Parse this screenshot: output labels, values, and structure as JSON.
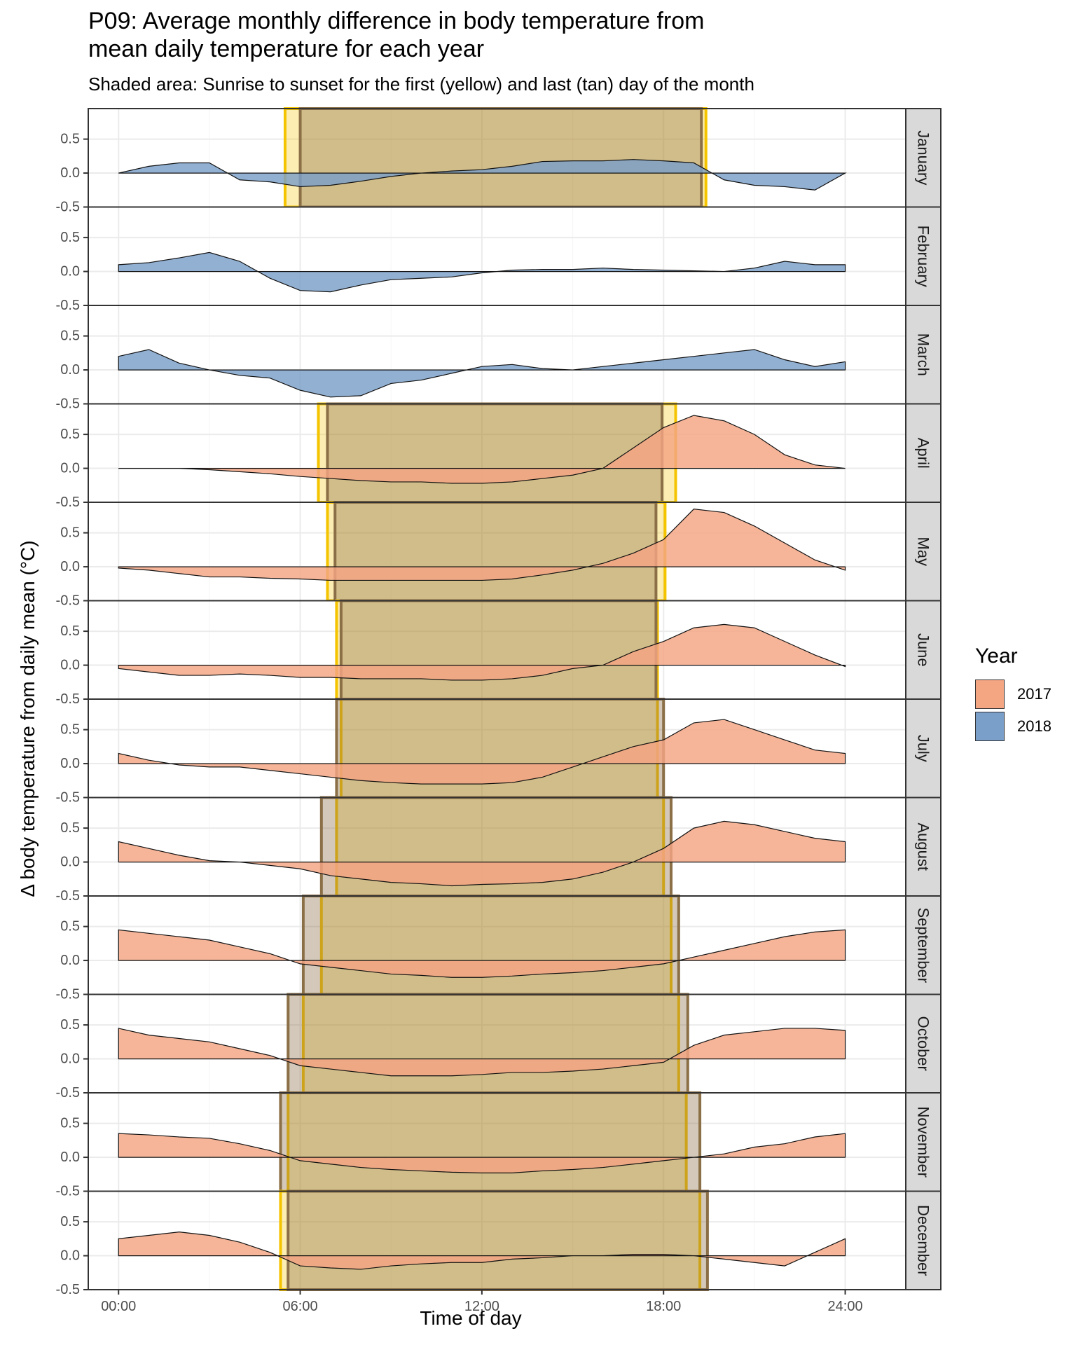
{
  "chart_data": {
    "type": "area",
    "title": "P09: Average monthly difference in body temperature from\nmean daily temperature for each year",
    "subtitle": "Shaded area: Sunrise to sunset for the first (yellow) and last (tan) day of the month",
    "xlabel": "Time of day",
    "ylabel": "Δ body temperature from daily mean (°C)",
    "x_unit": "hour",
    "xlim": [
      -1,
      26
    ],
    "ylim": [
      -0.5,
      0.95
    ],
    "x_ticks": [
      0,
      6,
      12,
      18,
      24
    ],
    "x_tick_labels": [
      "00:00",
      "06:00",
      "12:00",
      "18:00",
      "24:00"
    ],
    "y_ticks": [
      -0.5,
      0.0,
      0.5
    ],
    "y_tick_labels": [
      "-0.5",
      "0.0",
      "0.5"
    ],
    "grid": true,
    "legend": {
      "title": "Year",
      "position": "right",
      "entries": [
        {
          "label": "2017",
          "color": "#F4A582"
        },
        {
          "label": "2018",
          "color": "#7A9FC8"
        }
      ]
    },
    "colors": {
      "2017": "#F4A582",
      "2018": "#7A9FC8",
      "daylight_first": "#F5C400",
      "daylight_last": "#8B6F47",
      "strip_bg": "#D9D9D9"
    },
    "panels": [
      {
        "month": "January",
        "year": "2018",
        "first_day": [
          5.5,
          19.4
        ],
        "last_day": [
          6.0,
          19.25
        ],
        "x": [
          0,
          1,
          2,
          3,
          4,
          5,
          6,
          7,
          8,
          9,
          10,
          11,
          12,
          13,
          14,
          15,
          16,
          17,
          18,
          19,
          20,
          21,
          22,
          23,
          24
        ],
        "y": [
          0.0,
          0.1,
          0.15,
          0.15,
          -0.1,
          -0.13,
          -0.2,
          -0.18,
          -0.12,
          -0.05,
          0.0,
          0.03,
          0.05,
          0.1,
          0.17,
          0.18,
          0.18,
          0.2,
          0.18,
          0.15,
          -0.1,
          -0.18,
          -0.2,
          -0.25,
          0.0
        ]
      },
      {
        "month": "February",
        "year": "2018",
        "first_day": null,
        "last_day": null,
        "x": [
          0,
          1,
          2,
          3,
          4,
          5,
          6,
          7,
          8,
          9,
          10,
          11,
          12,
          13,
          14,
          15,
          16,
          17,
          18,
          19,
          20,
          21,
          22,
          23,
          24
        ],
        "y": [
          0.1,
          0.13,
          0.2,
          0.28,
          0.15,
          -0.1,
          -0.28,
          -0.3,
          -0.2,
          -0.12,
          -0.1,
          -0.08,
          -0.02,
          0.02,
          0.03,
          0.03,
          0.05,
          0.03,
          0.02,
          0.01,
          0.0,
          0.05,
          0.15,
          0.1,
          0.1
        ]
      },
      {
        "month": "March",
        "year": "2018",
        "first_day": null,
        "last_day": null,
        "x": [
          0,
          1,
          2,
          3,
          4,
          5,
          6,
          7,
          8,
          9,
          10,
          11,
          12,
          13,
          14,
          15,
          16,
          17,
          18,
          19,
          20,
          21,
          22,
          23,
          24
        ],
        "y": [
          0.2,
          0.3,
          0.1,
          0.0,
          -0.08,
          -0.12,
          -0.3,
          -0.4,
          -0.38,
          -0.2,
          -0.15,
          -0.05,
          0.05,
          0.08,
          0.02,
          0.0,
          0.05,
          0.1,
          0.15,
          0.2,
          0.25,
          0.3,
          0.15,
          0.05,
          0.12
        ]
      },
      {
        "month": "April",
        "year": "2017",
        "first_day": [
          6.6,
          18.4
        ],
        "last_day": [
          6.9,
          17.95
        ],
        "x": [
          0,
          1,
          2,
          3,
          4,
          5,
          6,
          7,
          8,
          9,
          10,
          11,
          12,
          13,
          14,
          15,
          16,
          17,
          18,
          19,
          20,
          21,
          22,
          23,
          24
        ],
        "y": [
          0.0,
          0.0,
          0.0,
          -0.02,
          -0.05,
          -0.08,
          -0.12,
          -0.15,
          -0.18,
          -0.2,
          -0.2,
          -0.22,
          -0.22,
          -0.2,
          -0.15,
          -0.1,
          0.0,
          0.3,
          0.6,
          0.78,
          0.7,
          0.5,
          0.2,
          0.05,
          0.0
        ]
      },
      {
        "month": "May",
        "year": "2017",
        "first_day": [
          6.9,
          18.05
        ],
        "last_day": [
          7.15,
          17.75
        ],
        "x": [
          0,
          1,
          2,
          3,
          4,
          5,
          6,
          7,
          8,
          9,
          10,
          11,
          12,
          13,
          14,
          15,
          16,
          17,
          18,
          19,
          20,
          21,
          22,
          23,
          24
        ],
        "y": [
          -0.02,
          -0.05,
          -0.1,
          -0.15,
          -0.15,
          -0.17,
          -0.18,
          -0.2,
          -0.2,
          -0.2,
          -0.2,
          -0.2,
          -0.2,
          -0.18,
          -0.12,
          -0.05,
          0.05,
          0.2,
          0.4,
          0.85,
          0.8,
          0.6,
          0.35,
          0.1,
          -0.05
        ]
      },
      {
        "month": "June",
        "year": "2017",
        "first_day": [
          7.2,
          17.8
        ],
        "last_day": [
          7.35,
          17.75
        ],
        "x": [
          0,
          1,
          2,
          3,
          4,
          5,
          6,
          7,
          8,
          9,
          10,
          11,
          12,
          13,
          14,
          15,
          16,
          17,
          18,
          19,
          20,
          21,
          22,
          23,
          24
        ],
        "y": [
          -0.05,
          -0.1,
          -0.15,
          -0.15,
          -0.13,
          -0.15,
          -0.18,
          -0.18,
          -0.2,
          -0.2,
          -0.2,
          -0.22,
          -0.22,
          -0.2,
          -0.15,
          -0.05,
          0.0,
          0.2,
          0.35,
          0.55,
          0.6,
          0.55,
          0.35,
          0.15,
          -0.02
        ]
      },
      {
        "month": "July",
        "year": "2017",
        "first_day": [
          7.35,
          17.8
        ],
        "last_day": [
          7.2,
          18.0
        ],
        "x": [
          0,
          1,
          2,
          3,
          4,
          5,
          6,
          7,
          8,
          9,
          10,
          11,
          12,
          13,
          14,
          15,
          16,
          17,
          18,
          19,
          20,
          21,
          22,
          23,
          24
        ],
        "y": [
          0.15,
          0.05,
          -0.02,
          -0.05,
          -0.05,
          -0.1,
          -0.15,
          -0.2,
          -0.25,
          -0.28,
          -0.3,
          -0.3,
          -0.3,
          -0.28,
          -0.2,
          -0.05,
          0.1,
          0.25,
          0.35,
          0.6,
          0.65,
          0.5,
          0.35,
          0.2,
          0.15
        ]
      },
      {
        "month": "August",
        "year": "2017",
        "first_day": [
          7.2,
          18.0
        ],
        "last_day": [
          6.7,
          18.25
        ],
        "x": [
          0,
          1,
          2,
          3,
          4,
          5,
          6,
          7,
          8,
          9,
          10,
          11,
          12,
          13,
          14,
          15,
          16,
          17,
          18,
          19,
          20,
          21,
          22,
          23,
          24
        ],
        "y": [
          0.3,
          0.2,
          0.1,
          0.02,
          0.0,
          -0.05,
          -0.1,
          -0.2,
          -0.25,
          -0.3,
          -0.32,
          -0.35,
          -0.33,
          -0.32,
          -0.3,
          -0.25,
          -0.15,
          0.0,
          0.2,
          0.5,
          0.6,
          0.55,
          0.45,
          0.35,
          0.3
        ]
      },
      {
        "month": "September",
        "year": "2017",
        "first_day": [
          6.7,
          18.25
        ],
        "last_day": [
          6.1,
          18.5
        ],
        "x": [
          0,
          1,
          2,
          3,
          4,
          5,
          6,
          7,
          8,
          9,
          10,
          11,
          12,
          13,
          14,
          15,
          16,
          17,
          18,
          19,
          20,
          21,
          22,
          23,
          24
        ],
        "y": [
          0.45,
          0.4,
          0.35,
          0.3,
          0.2,
          0.1,
          -0.05,
          -0.1,
          -0.15,
          -0.2,
          -0.22,
          -0.25,
          -0.25,
          -0.23,
          -0.2,
          -0.18,
          -0.15,
          -0.1,
          -0.05,
          0.05,
          0.15,
          0.25,
          0.35,
          0.42,
          0.45
        ]
      },
      {
        "month": "October",
        "year": "2017",
        "first_day": [
          6.1,
          18.5
        ],
        "last_day": [
          5.6,
          18.8
        ],
        "x": [
          0,
          1,
          2,
          3,
          4,
          5,
          6,
          7,
          8,
          9,
          10,
          11,
          12,
          13,
          14,
          15,
          16,
          17,
          18,
          19,
          20,
          21,
          22,
          23,
          24
        ],
        "y": [
          0.45,
          0.35,
          0.3,
          0.25,
          0.15,
          0.05,
          -0.1,
          -0.15,
          -0.2,
          -0.25,
          -0.25,
          -0.25,
          -0.23,
          -0.2,
          -0.2,
          -0.18,
          -0.15,
          -0.1,
          -0.05,
          0.2,
          0.35,
          0.4,
          0.45,
          0.45,
          0.42
        ]
      },
      {
        "month": "November",
        "year": "2017",
        "first_day": [
          5.6,
          18.75
        ],
        "last_day": [
          5.35,
          19.2
        ],
        "x": [
          0,
          1,
          2,
          3,
          4,
          5,
          6,
          7,
          8,
          9,
          10,
          11,
          12,
          13,
          14,
          15,
          16,
          17,
          18,
          19,
          20,
          21,
          22,
          23,
          24
        ],
        "y": [
          0.35,
          0.33,
          0.3,
          0.28,
          0.2,
          0.1,
          -0.05,
          -0.1,
          -0.15,
          -0.18,
          -0.2,
          -0.22,
          -0.23,
          -0.23,
          -0.2,
          -0.18,
          -0.15,
          -0.1,
          -0.05,
          0.0,
          0.05,
          0.15,
          0.2,
          0.3,
          0.35
        ]
      },
      {
        "month": "December",
        "year": "2017",
        "first_day": [
          5.35,
          19.2
        ],
        "last_day": [
          5.6,
          19.45
        ],
        "x": [
          0,
          1,
          2,
          3,
          4,
          5,
          6,
          7,
          8,
          9,
          10,
          11,
          12,
          13,
          14,
          15,
          16,
          17,
          18,
          19,
          20,
          21,
          22,
          23,
          24
        ],
        "y": [
          0.25,
          0.3,
          0.35,
          0.3,
          0.2,
          0.05,
          -0.15,
          -0.18,
          -0.2,
          -0.15,
          -0.12,
          -0.1,
          -0.1,
          -0.05,
          -0.03,
          0.0,
          0.0,
          0.02,
          0.02,
          0.0,
          -0.05,
          -0.1,
          -0.15,
          0.05,
          0.25
        ]
      }
    ]
  }
}
